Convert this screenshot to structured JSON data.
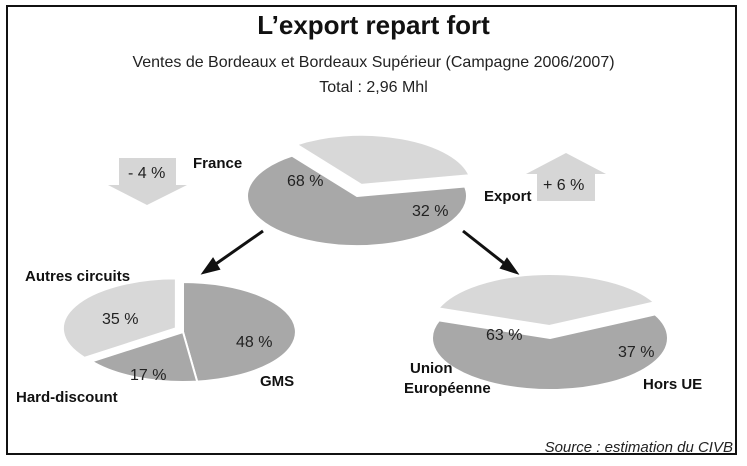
{
  "title": "L’export repart fort",
  "subtitle": "Ventes de Bordeaux et Bordeaux Supérieur (Campagne 2006/2007)",
  "total": "Total : 2,96 Mhl",
  "source": "Source : estimation du CIVB",
  "colors": {
    "dark": "#a8a8a8",
    "light": "#d8d8d8",
    "arrow_fill": "#d6d6d6"
  },
  "chart_data": [
    {
      "type": "pie",
      "name": "top",
      "slices": [
        {
          "label": "France",
          "value": 68,
          "text": "68 %",
          "color": "dark"
        },
        {
          "label": "Export",
          "value": 32,
          "text": "32 %",
          "color": "light"
        }
      ],
      "annotations": [
        {
          "for": "France",
          "text": "- 4 %",
          "direction": "down"
        },
        {
          "for": "Export",
          "text": "+ 6 %",
          "direction": "up"
        }
      ]
    },
    {
      "type": "pie",
      "name": "france",
      "slices": [
        {
          "label": "GMS",
          "value": 48,
          "text": "48 %",
          "color": "dark"
        },
        {
          "label": "Hard-discount",
          "value": 17,
          "text": "17 %",
          "color": "dark"
        },
        {
          "label": "Autres circuits",
          "value": 35,
          "text": "35 %",
          "color": "light"
        }
      ]
    },
    {
      "type": "pie",
      "name": "export",
      "slices": [
        {
          "label": "Union Européenne",
          "value": 63,
          "text": "63 %",
          "color": "dark"
        },
        {
          "label": "Hors UE",
          "value": 37,
          "text": "37 %",
          "color": "light"
        }
      ]
    }
  ]
}
